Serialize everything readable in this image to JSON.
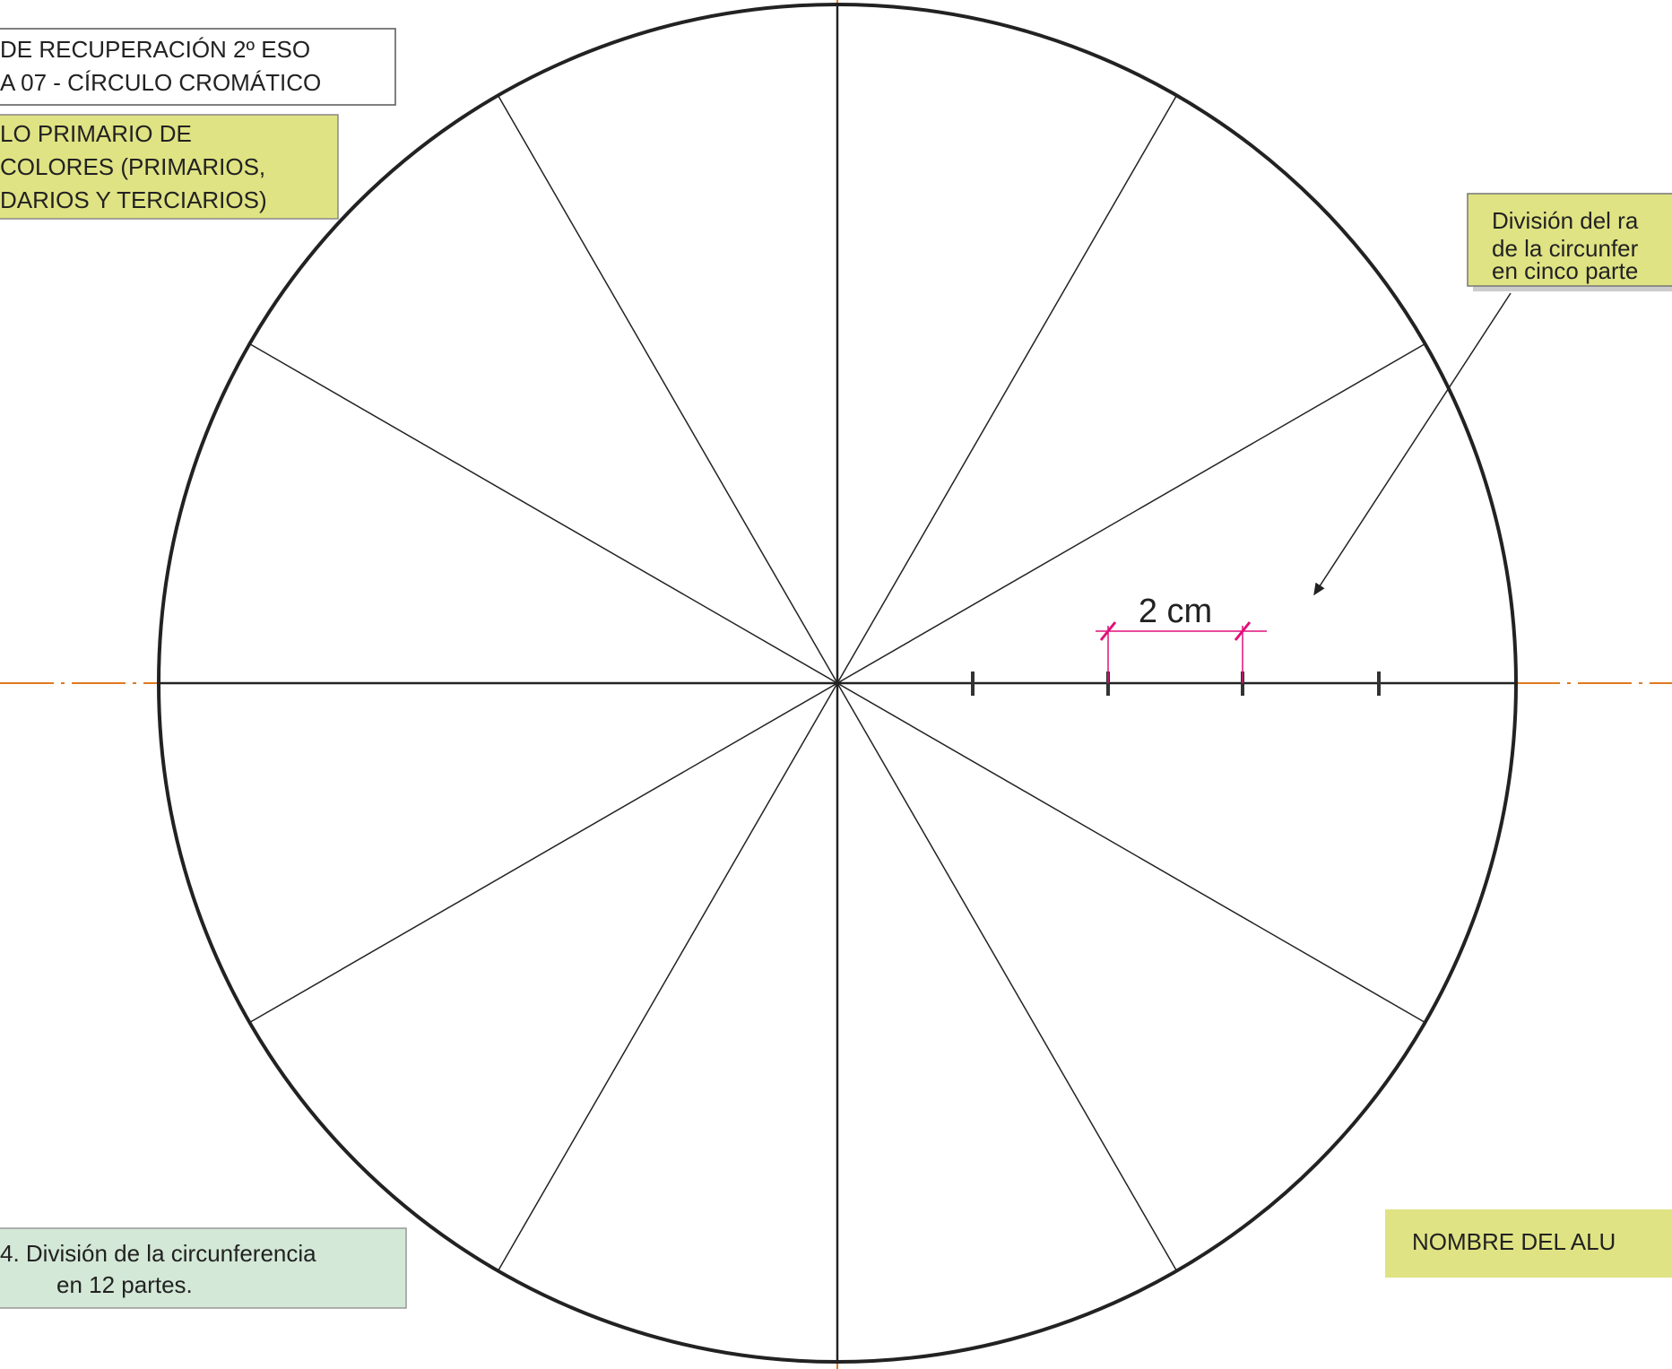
{
  "header": {
    "title_lines": [
      "DE RECUPERACIÓN 2º ESO",
      "A 07 - CÍRCULO CROMÁTICO"
    ]
  },
  "task": {
    "lines": [
      "LO PRIMARIO DE",
      "COLORES (PRIMARIOS,",
      "DARIOS Y TERCIARIOS)"
    ]
  },
  "callout": {
    "lines": [
      "División del ra",
      "de la circunfer",
      "en cinco parte"
    ]
  },
  "dimension": {
    "label": "2 cm"
  },
  "step": {
    "lines": [
      "4. División de la circunferencia",
      "en 12 partes."
    ]
  },
  "student": {
    "label": "NOMBRE DEL ALU"
  }
}
